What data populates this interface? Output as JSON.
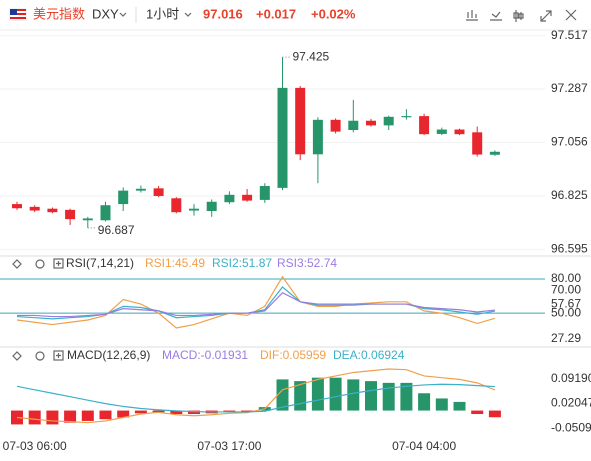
{
  "header": {
    "name": "美元指数",
    "symbol": "DXY",
    "interval": "1小时",
    "price": "97.016",
    "change": "+0.017",
    "change_pct": "+0.02%"
  },
  "chart_data": [
    {
      "type": "candlestick",
      "up_color": "#26956a",
      "down_color": "#e8262e",
      "grid": true,
      "categories": [
        null,
        "07-03 06:00",
        null,
        null,
        null,
        null,
        null,
        null,
        null,
        null,
        null,
        null,
        "07-03 17:00",
        null,
        null,
        null,
        null,
        null,
        null,
        null,
        null,
        null,
        null,
        "07-04 04:00",
        null,
        null,
        null,
        null
      ],
      "open": [
        96.79,
        96.778,
        96.77,
        96.765,
        96.72,
        96.72,
        96.79,
        96.848,
        96.858,
        96.815,
        96.762,
        96.76,
        96.798,
        96.83,
        96.808,
        96.86,
        97.292,
        97.005,
        97.154,
        97.11,
        97.15,
        97.13,
        97.165,
        97.17,
        97.093,
        97.112,
        97.1,
        97.003
      ],
      "high": [
        96.8,
        96.785,
        96.775,
        96.77,
        96.735,
        96.8,
        96.862,
        96.87,
        96.868,
        96.82,
        96.79,
        96.81,
        96.845,
        96.855,
        96.88,
        97.425,
        97.3,
        97.165,
        97.16,
        97.24,
        97.158,
        97.172,
        97.2,
        97.18,
        97.12,
        97.116,
        97.125,
        97.022
      ],
      "low": [
        96.765,
        96.755,
        96.75,
        96.7,
        96.687,
        96.715,
        96.76,
        96.84,
        96.82,
        96.75,
        96.74,
        96.735,
        96.79,
        96.8,
        96.795,
        96.85,
        96.98,
        96.88,
        97.095,
        97.1,
        97.125,
        97.11,
        97.155,
        97.088,
        97.088,
        97.088,
        96.995,
        96.998
      ],
      "close": [
        96.772,
        96.762,
        96.755,
        96.725,
        96.728,
        96.785,
        96.848,
        96.856,
        96.825,
        96.755,
        96.77,
        96.8,
        96.83,
        96.805,
        96.868,
        97.292,
        97.005,
        97.154,
        97.103,
        97.15,
        97.13,
        97.167,
        97.17,
        97.092,
        97.112,
        97.092,
        97.004,
        97.016
      ],
      "max_label": "97.425",
      "min_label": "96.687",
      "ylim": [
        96.57,
        97.542
      ],
      "yticks": [
        97.517,
        97.287,
        97.056,
        96.825,
        96.595
      ]
    },
    {
      "type": "line",
      "title": "RSI(7,14,21)",
      "ylim": [
        22,
        95
      ],
      "yticks": [
        {
          "value": 80,
          "label": "80.00"
        },
        {
          "value": 70,
          "label": "70.00"
        },
        57.67,
        {
          "value": 50,
          "label": "50.00"
        },
        27.29
      ],
      "levels": [
        80,
        50
      ],
      "level_color": "#3ba7b8",
      "series": [
        {
          "name": "RSI1:45.49",
          "color": "#f0a04b",
          "values": [
            44,
            42,
            40,
            42,
            44,
            48,
            62,
            58,
            50,
            37,
            40,
            45,
            50,
            48,
            56,
            82,
            60,
            56,
            56,
            58,
            59,
            60,
            60,
            52,
            50,
            46,
            41,
            45.49
          ]
        },
        {
          "name": "RSI2:51.87",
          "color": "#3bb0c9",
          "values": [
            47,
            46,
            45,
            46,
            47,
            49,
            56,
            55,
            52,
            46,
            47,
            48,
            50,
            50,
            53,
            73,
            60,
            57,
            57,
            57,
            58,
            58,
            58,
            54,
            53,
            51,
            49,
            51.87
          ]
        },
        {
          "name": "RSI3:52.74",
          "color": "#9a7be0",
          "values": [
            48,
            48,
            47,
            47,
            48,
            49,
            54,
            53,
            52,
            48,
            48,
            49,
            50,
            50,
            52,
            68,
            60,
            58,
            58,
            58,
            58,
            58,
            58,
            55,
            54,
            53,
            51,
            52.74
          ]
        }
      ]
    },
    {
      "type": "line",
      "title": "MACD(12,26,9)",
      "ylim": [
        -0.085,
        0.146
      ],
      "yticks": [
        {
          "value": 0.0919,
          "label": "0.09190"
        },
        0.02047,
        -0.05095
      ],
      "series": [
        {
          "name": "MACD:-0.01931",
          "type": "bar",
          "color": "#9a7be0",
          "up_color": "#26956a",
          "down_color": "#e8262e",
          "values": [
            -0.04,
            -0.04,
            -0.04,
            -0.035,
            -0.03,
            -0.025,
            -0.02,
            -0.008,
            -0.005,
            -0.01,
            -0.01,
            -0.008,
            -0.005,
            -0.003,
            0.01,
            0.09,
            0.085,
            0.095,
            0.095,
            0.09,
            0.085,
            0.08,
            0.08,
            0.05,
            0.035,
            0.025,
            -0.01,
            -0.01931
          ]
        },
        {
          "name": "DIF:0.05959",
          "color": "#f0a04b",
          "values": [
            -0.02,
            -0.025,
            -0.03,
            -0.032,
            -0.035,
            -0.03,
            -0.02,
            -0.01,
            -0.005,
            -0.012,
            -0.015,
            -0.012,
            -0.008,
            -0.006,
            0.005,
            0.06,
            0.075,
            0.09,
            0.1,
            0.11,
            0.115,
            0.12,
            0.118,
            0.1,
            0.095,
            0.09,
            0.08,
            0.05959
          ]
        },
        {
          "name": "DEA:0.06924",
          "color": "#3bb0c9",
          "values": [
            0.07,
            0.06,
            0.05,
            0.04,
            0.03,
            0.02,
            0.012,
            0.006,
            0.002,
            -0.001,
            -0.003,
            -0.004,
            -0.004,
            -0.004,
            -0.002,
            0.01,
            0.02,
            0.03,
            0.04,
            0.05,
            0.058,
            0.065,
            0.07,
            0.074,
            0.076,
            0.075,
            0.072,
            0.06924
          ]
        }
      ]
    }
  ]
}
